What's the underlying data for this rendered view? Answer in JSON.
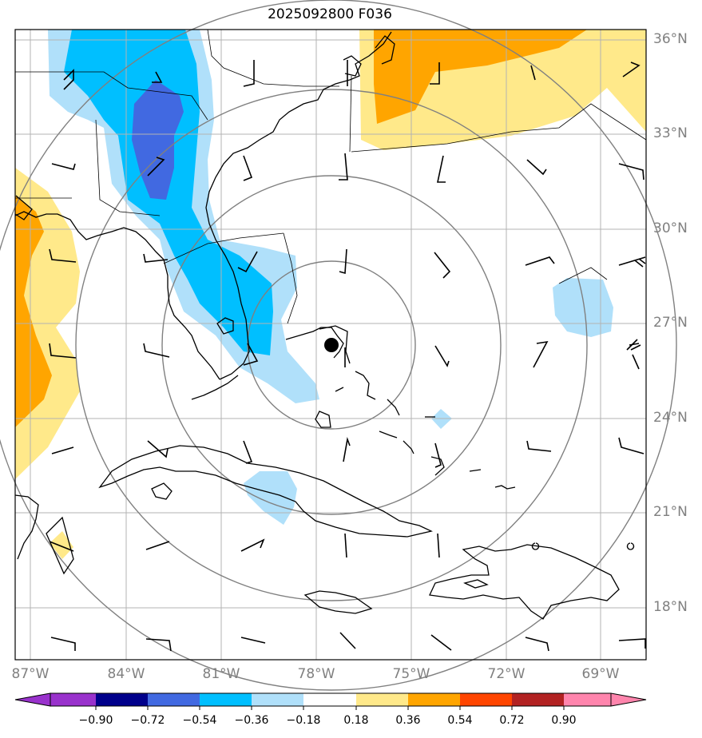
{
  "title": "2025092800 F036",
  "lat_labels": [
    "36°N",
    "33°N",
    "30°N",
    "27°N",
    "24°N",
    "21°N",
    "18°N"
  ],
  "lon_labels": [
    "87°W",
    "84°W",
    "81°W",
    "78°W",
    "75°W",
    "72°W",
    "69°W"
  ],
  "colorbar": {
    "ticks": [
      "−0.90",
      "−0.72",
      "−0.54",
      "−0.36",
      "−0.18",
      "0.18",
      "0.36",
      "0.54",
      "0.72",
      "0.90"
    ],
    "colors": [
      "#9932cc",
      "#00008b",
      "#4169e1",
      "#00bfff",
      "#b0e0fa",
      "#ffffff",
      "#ffe98a",
      "#ffa500",
      "#ff4500",
      "#b22222",
      "#ff85ad"
    ]
  },
  "field_colors": {
    "lightblue": "#b0e0fa",
    "cyan": "#00bfff",
    "royalblue": "#4169e1",
    "lightyellow": "#ffe98a",
    "orange": "#ffa500"
  },
  "storm_marker": "filled-circle"
}
